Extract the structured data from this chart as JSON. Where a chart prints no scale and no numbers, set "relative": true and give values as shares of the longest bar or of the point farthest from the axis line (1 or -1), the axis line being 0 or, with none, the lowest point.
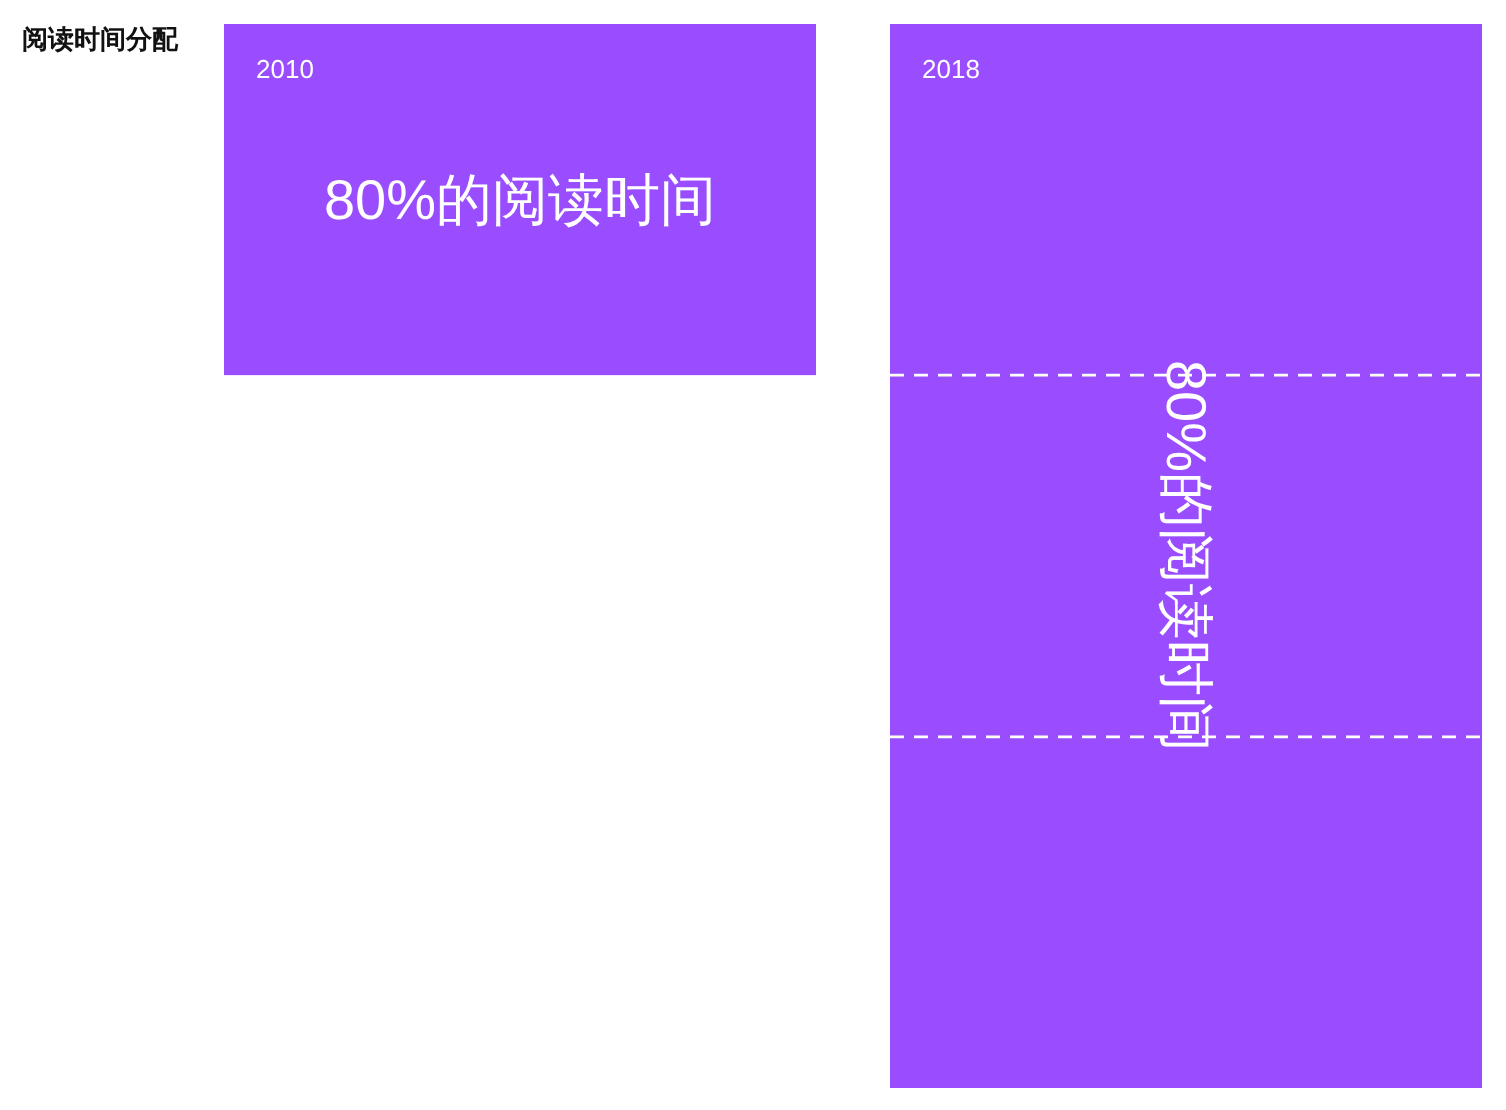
{
  "chart_data": {
    "type": "bar",
    "title": "阅读时间分配",
    "relative": true,
    "categories": [
      "2010",
      "2018"
    ],
    "values": [
      -0.33,
      -1
    ],
    "color": "#994dff",
    "ref_lines": [
      {
        "axis": "y",
        "value": -0.33,
        "color": "#ffffff",
        "line_style": "dashed"
      },
      {
        "axis": "y",
        "value": -0.67,
        "color": "#ffffff",
        "line_style": "dashed"
      }
    ],
    "annotations": [
      "80%的阅读时间",
      "80%的阅读时间"
    ]
  }
}
